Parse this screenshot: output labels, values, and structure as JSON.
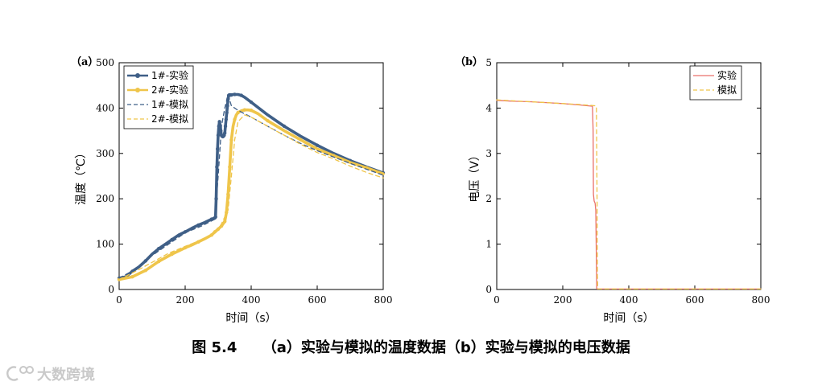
{
  "chart_data": [
    {
      "id": "a",
      "type": "line",
      "panel_label": "（a）",
      "xlabel": "时间（s）",
      "ylabel": "温度（℃）",
      "xlim": [
        0,
        800
      ],
      "ylim": [
        0,
        500
      ],
      "xticks": [
        0,
        200,
        400,
        600,
        800
      ],
      "yticks": [
        0,
        100,
        200,
        300,
        400,
        500
      ],
      "legend_position": "top-left",
      "series": [
        {
          "name": "1#-实验",
          "color": "#3f5f87",
          "style": "solid-markers",
          "x": [
            0,
            20,
            40,
            60,
            80,
            100,
            120,
            140,
            160,
            180,
            200,
            220,
            240,
            260,
            280,
            290,
            292,
            294,
            296,
            298,
            300,
            302,
            304,
            306,
            308,
            310,
            312,
            314,
            316,
            318,
            320,
            322,
            324,
            326,
            328,
            330,
            332,
            334,
            336,
            338,
            340,
            345,
            350,
            360,
            370,
            380,
            400,
            450,
            500,
            550,
            600,
            650,
            700,
            750,
            800
          ],
          "y": [
            25,
            28,
            40,
            50,
            63,
            78,
            90,
            100,
            110,
            120,
            127,
            135,
            142,
            148,
            155,
            158,
            160,
            200,
            270,
            310,
            340,
            360,
            370,
            362,
            350,
            340,
            338,
            337,
            338,
            340,
            345,
            360,
            375,
            390,
            405,
            420,
            428,
            429,
            429,
            429,
            429,
            430,
            430,
            430,
            428,
            424,
            413,
            385,
            360,
            338,
            318,
            300,
            284,
            270,
            257
          ]
        },
        {
          "name": "2#-实验",
          "color": "#efc54a",
          "style": "solid-markers",
          "x": [
            0,
            20,
            40,
            60,
            80,
            100,
            120,
            140,
            160,
            180,
            200,
            220,
            240,
            260,
            280,
            290,
            300,
            310,
            320,
            325,
            330,
            335,
            340,
            345,
            350,
            355,
            360,
            370,
            380,
            390,
            400,
            420,
            450,
            500,
            550,
            600,
            650,
            700,
            750,
            800
          ],
          "y": [
            22,
            25,
            28,
            35,
            42,
            52,
            62,
            70,
            78,
            85,
            92,
            98,
            105,
            112,
            120,
            127,
            133,
            140,
            150,
            170,
            210,
            270,
            330,
            360,
            375,
            385,
            390,
            394,
            396,
            396,
            395,
            388,
            372,
            350,
            330,
            310,
            295,
            280,
            268,
            255
          ]
        },
        {
          "name": "1#-模拟",
          "color": "#3f5f87",
          "style": "dashed",
          "x": [
            0,
            50,
            100,
            150,
            200,
            250,
            290,
            300,
            310,
            320,
            330,
            340,
            360,
            400,
            450,
            500,
            550,
            600,
            650,
            700,
            750,
            800
          ],
          "y": [
            25,
            45,
            75,
            100,
            125,
            140,
            155,
            250,
            360,
            400,
            430,
            405,
            395,
            380,
            360,
            340,
            322,
            306,
            292,
            278,
            265,
            252
          ]
        },
        {
          "name": "2#-模拟",
          "color": "#efc54a",
          "style": "dashed",
          "x": [
            0,
            50,
            100,
            150,
            200,
            250,
            300,
            330,
            340,
            350,
            360,
            380,
            400,
            450,
            500,
            550,
            600,
            650,
            700,
            750,
            800
          ],
          "y": [
            22,
            40,
            60,
            80,
            95,
            110,
            130,
            175,
            250,
            330,
            370,
            385,
            380,
            360,
            340,
            320,
            302,
            288,
            272,
            258,
            246
          ]
        }
      ]
    },
    {
      "id": "b",
      "type": "line",
      "panel_label": "（b）",
      "xlabel": "时间（s）",
      "ylabel": "电压（V）",
      "xlim": [
        0,
        800
      ],
      "ylim": [
        0,
        5
      ],
      "xticks": [
        0,
        200,
        400,
        600,
        800
      ],
      "yticks": [
        0,
        1,
        2,
        3,
        4,
        5
      ],
      "legend_position": "top-right",
      "series": [
        {
          "name": "实验",
          "color": "#e9716b",
          "style": "solid",
          "x": [
            0,
            50,
            100,
            150,
            200,
            250,
            290,
            292,
            293,
            295,
            298,
            300,
            302,
            303,
            304,
            800
          ],
          "y": [
            4.17,
            4.15,
            4.14,
            4.12,
            4.1,
            4.07,
            4.04,
            3.5,
            2.1,
            1.95,
            1.9,
            1.75,
            0.6,
            0.02,
            0.01,
            0.01
          ]
        },
        {
          "name": "模拟",
          "color": "#efc54a",
          "style": "dashed",
          "x": [
            0,
            50,
            100,
            150,
            200,
            250,
            300,
            302,
            304,
            305,
            306,
            800
          ],
          "y": [
            4.18,
            4.16,
            4.14,
            4.12,
            4.1,
            4.08,
            4.05,
            4.0,
            2.0,
            0.3,
            0.01,
            0.01
          ]
        }
      ]
    }
  ],
  "caption": {
    "figure_no": "图 5.4",
    "text": "（a）实验与模拟的温度数据（b）实验与模拟的电压数据"
  },
  "watermark": {
    "text": "大数跨境"
  }
}
